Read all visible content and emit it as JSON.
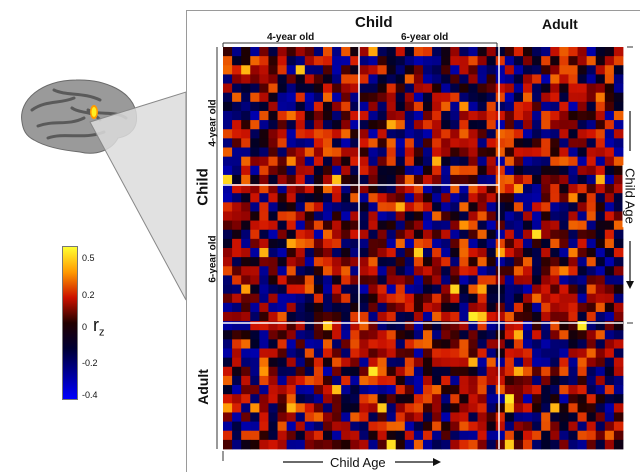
{
  "labels": {
    "top_child": "Child",
    "top_adult": "Adult",
    "top_4yr": "4-year old",
    "top_6yr": "6-year old",
    "left_child": "Child",
    "left_adult": "Adult",
    "left_4yr": "4-year old",
    "left_6yr": "6-year old",
    "bottom_axis": "Child Age",
    "right_axis": "Child Age"
  },
  "colorbar": {
    "ticks": [
      "0.5",
      "0.2",
      "0",
      "-0.2",
      "-0.4"
    ],
    "symbol": "r",
    "subscript": "z",
    "colors": [
      "#ffff33",
      "#ff9900",
      "#cc1100",
      "#220000",
      "#000033",
      "#000099",
      "#0000ff"
    ]
  },
  "brain": {
    "highlight_colors": [
      "#ffee22",
      "#ff9900"
    ]
  },
  "matrix": {
    "groups": [
      "4-year old",
      "6-year old",
      "Adult"
    ],
    "value_range": [
      -0.4,
      0.5
    ]
  }
}
